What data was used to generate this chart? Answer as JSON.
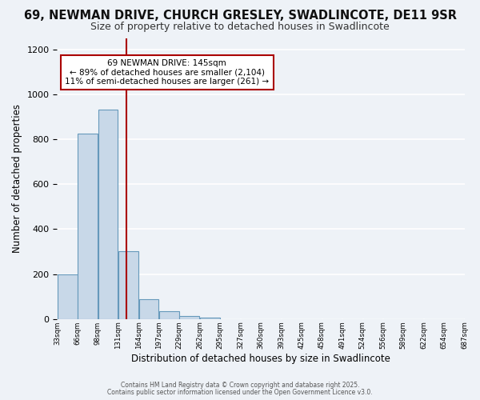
{
  "title": "69, NEWMAN DRIVE, CHURCH GRESLEY, SWADLINCOTE, DE11 9SR",
  "subtitle": "Size of property relative to detached houses in Swadlincote",
  "xlabel": "Distribution of detached houses by size in Swadlincote",
  "ylabel": "Number of detached properties",
  "footnote1": "Contains HM Land Registry data © Crown copyright and database right 2025.",
  "footnote2": "Contains public sector information licensed under the Open Government Licence v3.0.",
  "bin_left_edges": [
    33,
    66,
    99,
    132,
    165,
    198,
    231,
    264,
    297,
    330,
    363,
    396,
    429,
    462,
    495,
    528,
    561,
    594,
    627,
    660
  ],
  "bin_width": 33,
  "bar_heights": [
    197,
    824,
    930,
    300,
    88,
    35,
    15,
    8,
    0,
    0,
    0,
    0,
    0,
    0,
    0,
    0,
    0,
    0,
    0,
    0
  ],
  "bar_color": "#c8d8e8",
  "bar_edgecolor": "#6699bb",
  "vline_x": 145,
  "vline_color": "#aa0000",
  "ylim": [
    0,
    1250
  ],
  "yticks": [
    0,
    200,
    400,
    600,
    800,
    1000,
    1200
  ],
  "xtick_labels": [
    "33sqm",
    "66sqm",
    "98sqm",
    "131sqm",
    "164sqm",
    "197sqm",
    "229sqm",
    "262sqm",
    "295sqm",
    "327sqm",
    "360sqm",
    "393sqm",
    "425sqm",
    "458sqm",
    "491sqm",
    "524sqm",
    "556sqm",
    "589sqm",
    "622sqm",
    "654sqm",
    "687sqm"
  ],
  "annotation_title": "69 NEWMAN DRIVE: 145sqm",
  "annotation_line1": "← 89% of detached houses are smaller (2,104)",
  "annotation_line2": "11% of semi-detached houses are larger (261) →",
  "bg_color": "#eef2f7",
  "grid_color": "#ffffff",
  "title_fontsize": 10.5,
  "subtitle_fontsize": 9
}
